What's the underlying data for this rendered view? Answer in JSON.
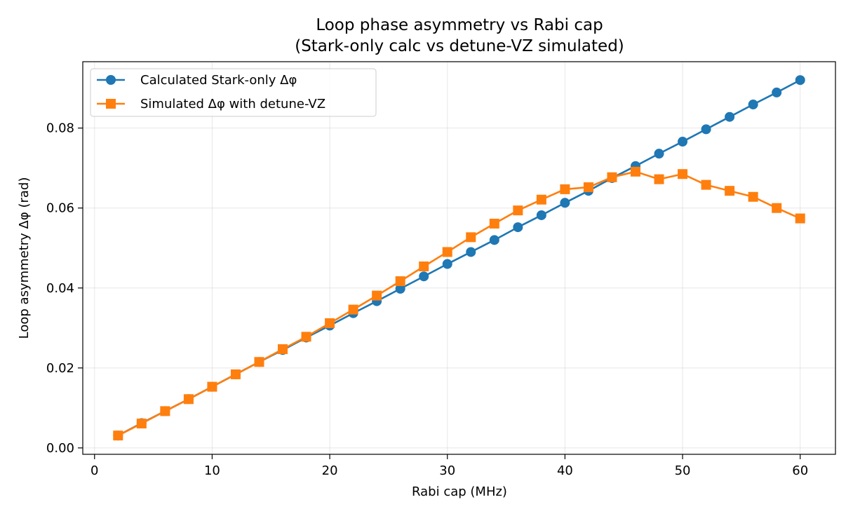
{
  "chart_data": {
    "type": "line",
    "title": "Loop phase asymmetry vs Rabi cap",
    "subtitle": "(Stark-only calc vs detune-VZ simulated)",
    "xlabel": "Rabi cap (MHz)",
    "ylabel": "Loop asymmetry Δφ (rad)",
    "xlim": [
      -1,
      63
    ],
    "ylim": [
      -0.0016,
      0.0966
    ],
    "xticks": [
      0,
      10,
      20,
      30,
      40,
      50,
      60
    ],
    "xtick_labels": [
      "0",
      "10",
      "20",
      "30",
      "40",
      "50",
      "60"
    ],
    "yticks": [
      0.0,
      0.02,
      0.04,
      0.06,
      0.08
    ],
    "ytick_labels": [
      "0.00",
      "0.02",
      "0.04",
      "0.06",
      "0.08"
    ],
    "grid": true,
    "legend_position": "top-left",
    "x": [
      2,
      4,
      6,
      8,
      10,
      12,
      14,
      16,
      18,
      20,
      22,
      24,
      26,
      28,
      30,
      32,
      34,
      36,
      38,
      40,
      42,
      44,
      46,
      48,
      50,
      52,
      54,
      56,
      58,
      60
    ],
    "series": [
      {
        "name": "Calculated Stark-only Δφ",
        "color": "#1f77b4",
        "marker": "circle",
        "values": [
          0.0031,
          0.0062,
          0.0092,
          0.0122,
          0.0153,
          0.0184,
          0.0215,
          0.0245,
          0.0276,
          0.0306,
          0.0337,
          0.0367,
          0.0398,
          0.0429,
          0.046,
          0.049,
          0.052,
          0.0552,
          0.0582,
          0.0613,
          0.0643,
          0.0675,
          0.0705,
          0.0736,
          0.0766,
          0.0797,
          0.0828,
          0.0859,
          0.0889,
          0.092
        ]
      },
      {
        "name": "Simulated Δφ with detune-VZ",
        "color": "#ff7f0e",
        "marker": "square",
        "values": [
          0.0031,
          0.0061,
          0.0092,
          0.0122,
          0.0153,
          0.0184,
          0.0215,
          0.0247,
          0.0278,
          0.0312,
          0.0346,
          0.0381,
          0.0417,
          0.0454,
          0.049,
          0.0527,
          0.0561,
          0.0594,
          0.0621,
          0.0647,
          0.0652,
          0.0677,
          0.0691,
          0.0672,
          0.0685,
          0.0658,
          0.0643,
          0.0628,
          0.06,
          0.0574
        ]
      }
    ]
  }
}
